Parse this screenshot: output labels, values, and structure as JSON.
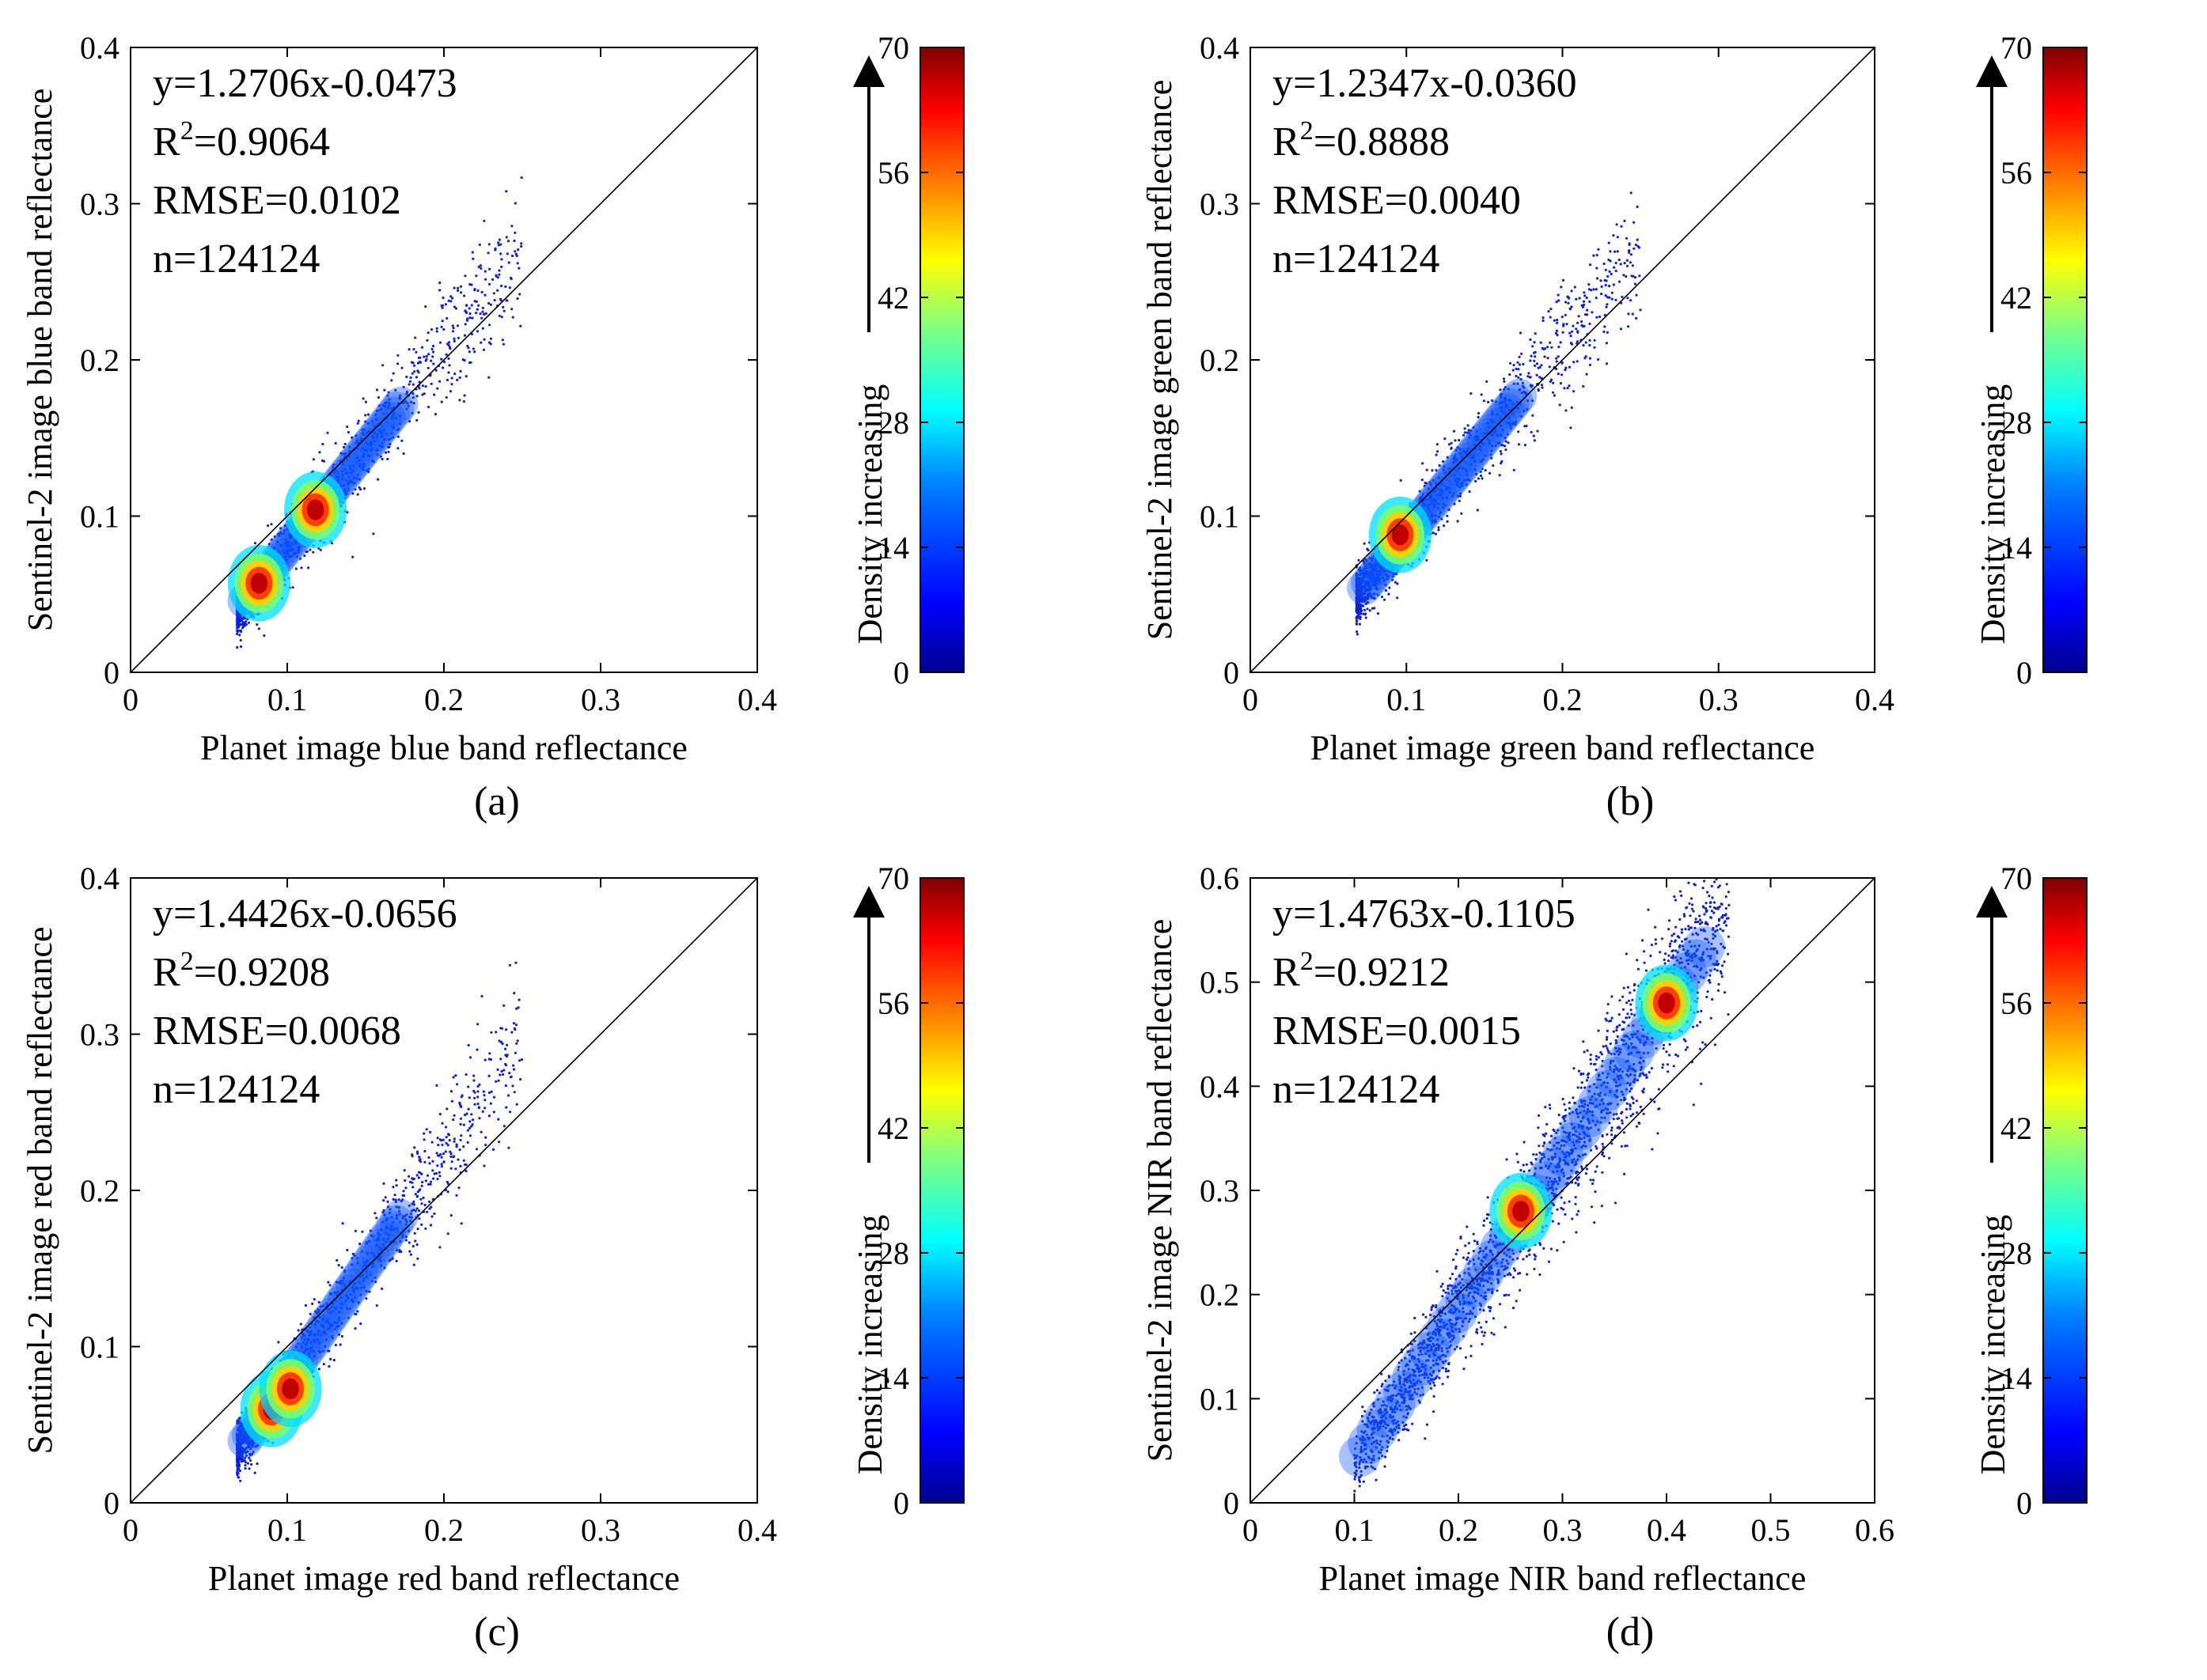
{
  "figure": {
    "colorbar": {
      "ticks": [
        "0",
        "14",
        "28",
        "42",
        "56",
        "70"
      ],
      "label": "Density increasing",
      "colors": [
        "#00008f",
        "#0000ff",
        "#0080ff",
        "#00ffff",
        "#80ff80",
        "#ffff00",
        "#ff8000",
        "#ff0000",
        "#800000"
      ]
    }
  },
  "chart_data": [
    {
      "type": "scatter",
      "panel_label": "(a)",
      "band": "blue",
      "xlabel": "Planet image blue band reflectance",
      "ylabel": "Sentinel-2 image blue band reflectance",
      "xlim": [
        0,
        0.4
      ],
      "ylim": [
        0,
        0.4
      ],
      "xticks": [
        "0",
        "0.1",
        "0.2",
        "0.3",
        "0.4"
      ],
      "yticks": [
        "0",
        "0.1",
        "0.2",
        "0.3",
        "0.4"
      ],
      "equation": "y=1.2706x-0.0473",
      "r2": "=0.9064",
      "rmse": "RMSE=0.0102",
      "n": "n=124124",
      "slope": 1.2706,
      "intercept": -0.0473,
      "one_to_one_line": true,
      "density_peaks": [
        [
          0.082,
          0.057
        ],
        [
          0.118,
          0.104
        ]
      ]
    },
    {
      "type": "scatter",
      "panel_label": "(b)",
      "band": "green",
      "xlabel": "Planet image green band reflectance",
      "ylabel": "Sentinel-2 image green band reflectance",
      "xlim": [
        0,
        0.4
      ],
      "ylim": [
        0,
        0.4
      ],
      "xticks": [
        "0",
        "0.1",
        "0.2",
        "0.3",
        "0.4"
      ],
      "yticks": [
        "0",
        "0.1",
        "0.2",
        "0.3",
        "0.4"
      ],
      "equation": "y=1.2347x-0.0360",
      "r2": "=0.8888",
      "rmse": "RMSE=0.0040",
      "n": "n=124124",
      "slope": 1.2347,
      "intercept": -0.036,
      "one_to_one_line": true,
      "density_peaks": [
        [
          0.096,
          0.088
        ]
      ]
    },
    {
      "type": "scatter",
      "panel_label": "(c)",
      "band": "red",
      "xlabel": "Planet image red band reflectance",
      "ylabel": "Sentinel-2 image red band reflectance",
      "xlim": [
        0,
        0.4
      ],
      "ylim": [
        0,
        0.4
      ],
      "xticks": [
        "0",
        "0.1",
        "0.2",
        "0.3",
        "0.4"
      ],
      "yticks": [
        "0",
        "0.1",
        "0.2",
        "0.3",
        "0.4"
      ],
      "equation": "y=1.4426x-0.0656",
      "r2": "=0.9208",
      "rmse": "RMSE=0.0068",
      "n": "n=124124",
      "slope": 1.4426,
      "intercept": -0.0656,
      "one_to_one_line": true,
      "density_peaks": [
        [
          0.09,
          0.06
        ],
        [
          0.102,
          0.073
        ]
      ]
    },
    {
      "type": "scatter",
      "panel_label": "(d)",
      "band": "NIR",
      "xlabel": "Planet image NIR band reflectance",
      "ylabel": "Sentinel-2 image NIR band reflectance",
      "xlim": [
        0,
        0.6
      ],
      "ylim": [
        0,
        0.6
      ],
      "xticks": [
        "0",
        "0.1",
        "0.2",
        "0.3",
        "0.4",
        "0.5",
        "0.6"
      ],
      "yticks": [
        "0",
        "0.1",
        "0.2",
        "0.3",
        "0.4",
        "0.5",
        "0.6"
      ],
      "equation": "y=1.4763x-0.1105",
      "r2": "=0.9212",
      "rmse": "RMSE=0.0015",
      "n": "n=124124",
      "slope": 1.4763,
      "intercept": -0.1105,
      "one_to_one_line": true,
      "density_peaks": [
        [
          0.26,
          0.28
        ],
        [
          0.4,
          0.48
        ]
      ]
    }
  ]
}
